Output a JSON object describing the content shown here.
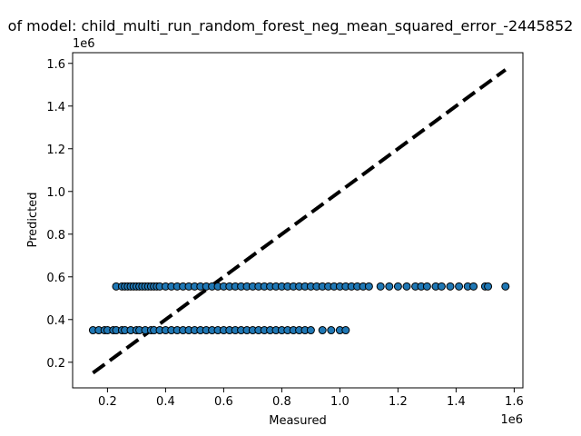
{
  "chart_data": {
    "type": "scatter",
    "title": "of model: child_multi_run_random_forest_neg_mean_squared_error_-2445852",
    "xlabel": "Measured",
    "ylabel": "Predicted",
    "x_offset_label": "1e6",
    "y_offset_label": "1e6",
    "xlim": [
      0.08,
      1.63
    ],
    "ylim": [
      0.08,
      1.65
    ],
    "x_ticks": [
      0.2,
      0.4,
      0.6,
      0.8,
      1.0,
      1.2,
      1.4,
      1.6
    ],
    "x_tick_labels": [
      "0.2",
      "0.4",
      "0.6",
      "0.8",
      "1.0",
      "1.2",
      "1.4",
      "1.6"
    ],
    "y_ticks": [
      0.2,
      0.4,
      0.6,
      0.8,
      1.0,
      1.2,
      1.4,
      1.6
    ],
    "y_tick_labels": [
      "0.2",
      "0.4",
      "0.6",
      "0.8",
      "1.0",
      "1.2",
      "1.4",
      "1.6"
    ],
    "grid": false,
    "point_color": "#1f77b4",
    "point_edge_color": "#000000",
    "reference_line": {
      "x": [
        0.15,
        1.57
      ],
      "y": [
        0.15,
        1.57
      ],
      "color": "#000000",
      "style": "dashed"
    },
    "series": [
      {
        "y": 0.35,
        "x": [
          0.15,
          0.17,
          0.19,
          0.2,
          0.22,
          0.23,
          0.25,
          0.26,
          0.28,
          0.3,
          0.31,
          0.33,
          0.35,
          0.36,
          0.38,
          0.4,
          0.42,
          0.44,
          0.46,
          0.48,
          0.5,
          0.52,
          0.54,
          0.56,
          0.58,
          0.6,
          0.62,
          0.64,
          0.66,
          0.68,
          0.7,
          0.72,
          0.74,
          0.76,
          0.78,
          0.8,
          0.82,
          0.84,
          0.86,
          0.88,
          0.9,
          0.94,
          0.97,
          1.0,
          1.02
        ]
      },
      {
        "y": 0.555,
        "x": [
          0.23,
          0.25,
          0.26,
          0.27,
          0.28,
          0.29,
          0.3,
          0.31,
          0.32,
          0.33,
          0.34,
          0.35,
          0.36,
          0.37,
          0.38,
          0.4,
          0.42,
          0.44,
          0.46,
          0.48,
          0.5,
          0.52,
          0.54,
          0.56,
          0.58,
          0.6,
          0.62,
          0.64,
          0.66,
          0.68,
          0.7,
          0.72,
          0.74,
          0.76,
          0.78,
          0.8,
          0.82,
          0.84,
          0.86,
          0.88,
          0.9,
          0.92,
          0.94,
          0.96,
          0.98,
          1.0,
          1.02,
          1.04,
          1.06,
          1.08,
          1.1,
          1.14,
          1.17,
          1.2,
          1.23,
          1.26,
          1.28,
          1.3,
          1.33,
          1.35,
          1.38,
          1.41,
          1.44,
          1.46,
          1.5,
          1.51,
          1.57
        ]
      }
    ]
  }
}
